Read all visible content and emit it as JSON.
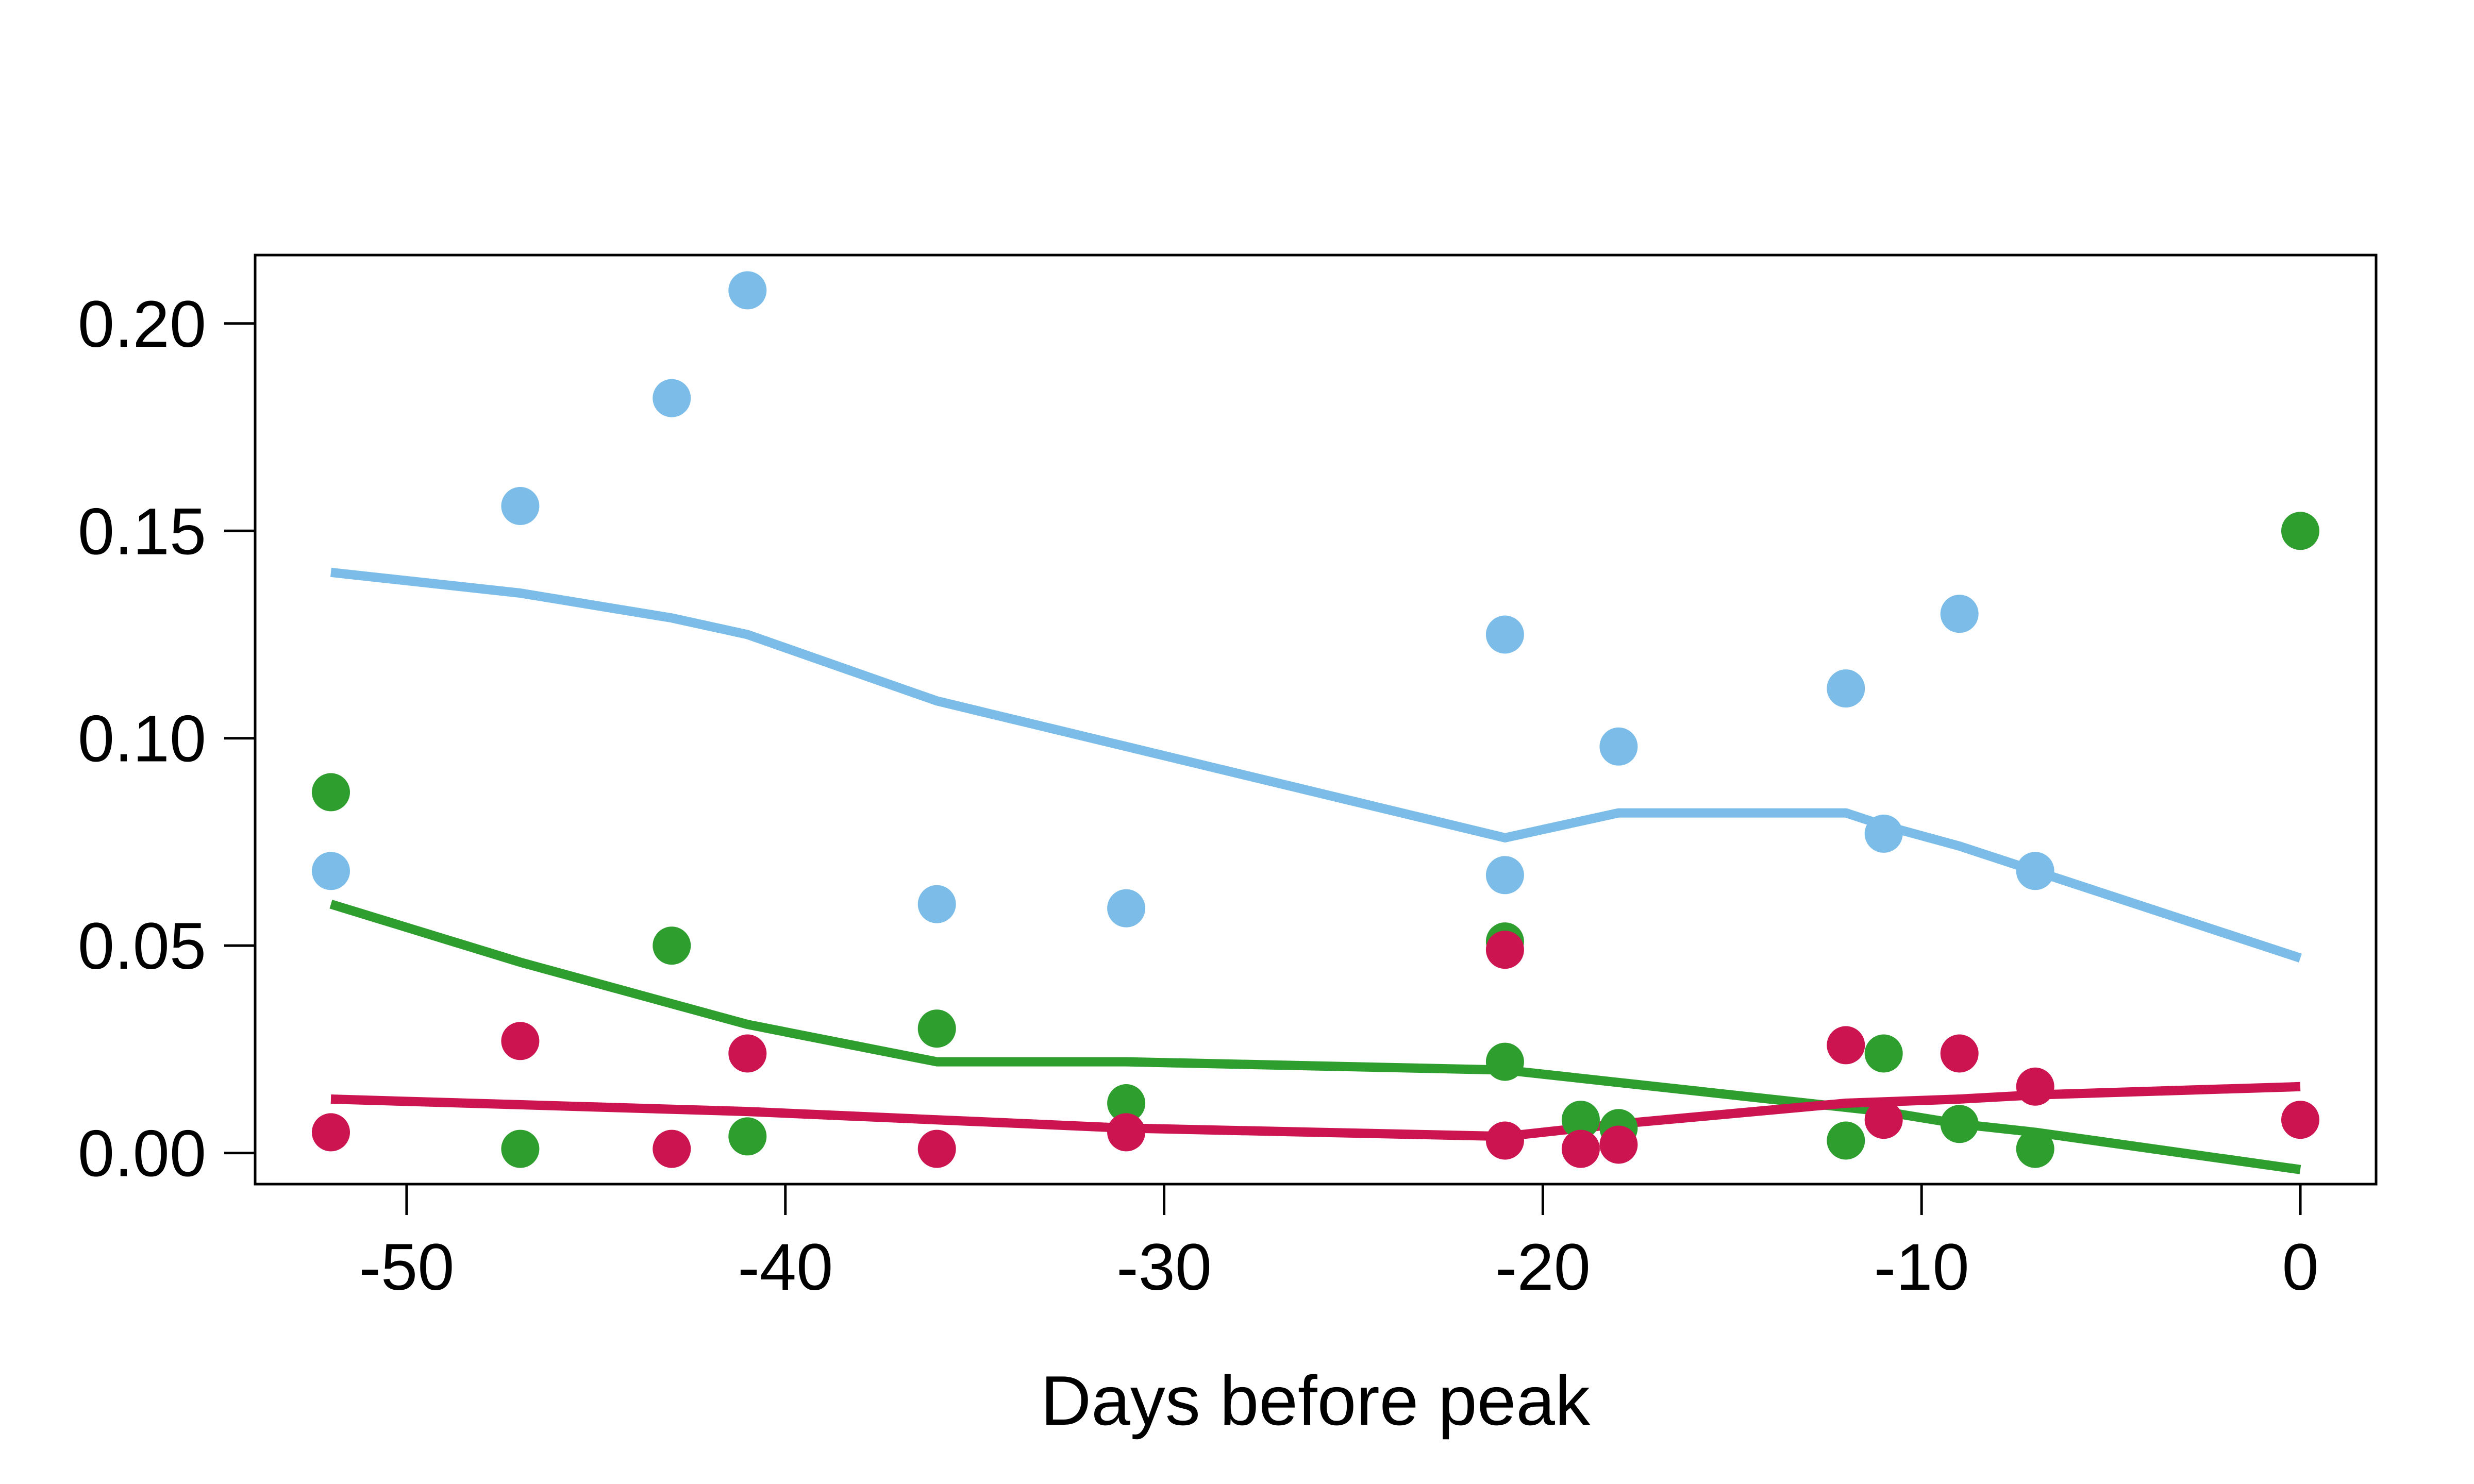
{
  "chart_data": {
    "type": "scatter",
    "title": "",
    "xlabel": "Days before peak",
    "ylabel": "",
    "xlim": [
      -54,
      2
    ],
    "ylim": [
      -0.0075,
      0.2165
    ],
    "xticks": [
      -50,
      -40,
      -30,
      -20,
      -10,
      0
    ],
    "yticks": [
      0.0,
      0.05,
      0.1,
      0.15,
      0.2
    ],
    "ytick_labels": [
      "0.00",
      "0.05",
      "0.10",
      "0.15",
      "0.20"
    ],
    "grid": false,
    "legend": "none",
    "series": [
      {
        "color": "#7bbde8",
        "points": [
          {
            "x": -52,
            "y": 0.068
          },
          {
            "x": -47,
            "y": 0.156
          },
          {
            "x": -43,
            "y": 0.182
          },
          {
            "x": -41,
            "y": 0.208
          },
          {
            "x": -36,
            "y": 0.06
          },
          {
            "x": -31,
            "y": 0.059
          },
          {
            "x": -21,
            "y": 0.125
          },
          {
            "x": -21,
            "y": 0.067
          },
          {
            "x": -19,
            "y": 0.008
          },
          {
            "x": -18,
            "y": 0.098
          },
          {
            "x": -12,
            "y": 0.112
          },
          {
            "x": -11,
            "y": 0.077
          },
          {
            "x": -9,
            "y": 0.13
          },
          {
            "x": -7,
            "y": 0.068
          }
        ],
        "trend": [
          {
            "x": -52,
            "y": 0.14
          },
          {
            "x": -47,
            "y": 0.135
          },
          {
            "x": -43,
            "y": 0.129
          },
          {
            "x": -41,
            "y": 0.125
          },
          {
            "x": -36,
            "y": 0.109
          },
          {
            "x": -31,
            "y": 0.098
          },
          {
            "x": -21,
            "y": 0.076
          },
          {
            "x": -19,
            "y": 0.08
          },
          {
            "x": -18,
            "y": 0.082
          },
          {
            "x": -12,
            "y": 0.082
          },
          {
            "x": -11,
            "y": 0.079
          },
          {
            "x": -9,
            "y": 0.074
          },
          {
            "x": -7,
            "y": 0.068
          },
          {
            "x": 0,
            "y": 0.047
          }
        ]
      },
      {
        "color": "#2e9e2e",
        "points": [
          {
            "x": -52,
            "y": 0.087
          },
          {
            "x": -47,
            "y": 0.001
          },
          {
            "x": -43,
            "y": 0.05
          },
          {
            "x": -41,
            "y": 0.004
          },
          {
            "x": -36,
            "y": 0.03
          },
          {
            "x": -31,
            "y": 0.012
          },
          {
            "x": -21,
            "y": 0.051
          },
          {
            "x": -21,
            "y": 0.022
          },
          {
            "x": -19,
            "y": 0.008
          },
          {
            "x": -18,
            "y": 0.006
          },
          {
            "x": -12,
            "y": 0.003
          },
          {
            "x": -11,
            "y": 0.024
          },
          {
            "x": -9,
            "y": 0.007
          },
          {
            "x": -7,
            "y": 0.001
          },
          {
            "x": 0,
            "y": 0.15
          }
        ],
        "trend": [
          {
            "x": -52,
            "y": 0.06
          },
          {
            "x": -47,
            "y": 0.046
          },
          {
            "x": -43,
            "y": 0.036
          },
          {
            "x": -41,
            "y": 0.031
          },
          {
            "x": -36,
            "y": 0.022
          },
          {
            "x": -31,
            "y": 0.022
          },
          {
            "x": -21,
            "y": 0.02
          },
          {
            "x": -19,
            "y": 0.018
          },
          {
            "x": -18,
            "y": 0.017
          },
          {
            "x": -12,
            "y": 0.011
          },
          {
            "x": -11,
            "y": 0.01
          },
          {
            "x": -9,
            "y": 0.007
          },
          {
            "x": -7,
            "y": 0.005
          },
          {
            "x": 0,
            "y": -0.004
          }
        ]
      },
      {
        "color": "#cc1450",
        "points": [
          {
            "x": -52,
            "y": 0.005
          },
          {
            "x": -47,
            "y": 0.027
          },
          {
            "x": -43,
            "y": 0.001
          },
          {
            "x": -41,
            "y": 0.024
          },
          {
            "x": -36,
            "y": 0.001
          },
          {
            "x": -31,
            "y": 0.005
          },
          {
            "x": -21,
            "y": 0.049
          },
          {
            "x": -21,
            "y": 0.003
          },
          {
            "x": -19,
            "y": 0.001
          },
          {
            "x": -18,
            "y": 0.002
          },
          {
            "x": -12,
            "y": 0.026
          },
          {
            "x": -11,
            "y": 0.008
          },
          {
            "x": -9,
            "y": 0.024
          },
          {
            "x": -7,
            "y": 0.016
          },
          {
            "x": 0,
            "y": 0.008
          }
        ],
        "trend": [
          {
            "x": -52,
            "y": 0.013
          },
          {
            "x": -41,
            "y": 0.01
          },
          {
            "x": -36,
            "y": 0.008
          },
          {
            "x": -31,
            "y": 0.006
          },
          {
            "x": -21,
            "y": 0.004
          },
          {
            "x": -18,
            "y": 0.007
          },
          {
            "x": -12,
            "y": 0.012
          },
          {
            "x": -9,
            "y": 0.013
          },
          {
            "x": -7,
            "y": 0.014
          },
          {
            "x": 0,
            "y": 0.016
          }
        ]
      }
    ]
  }
}
